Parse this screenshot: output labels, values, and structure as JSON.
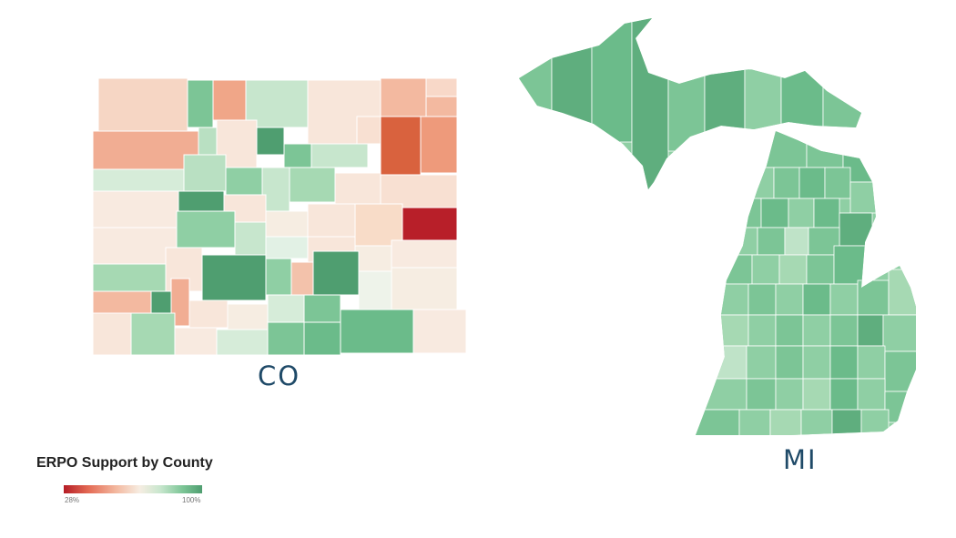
{
  "colorado": {
    "label": "CO",
    "scale_colors": [
      "#b51d26",
      "#e46b55",
      "#f3b9a0",
      "#f6ede2",
      "#c7e6cd",
      "#7cc596",
      "#4f9e70"
    ]
  },
  "michigan": {
    "label": "MI",
    "base_color": "#7cc596",
    "dark_color": "#5fae7e",
    "light_color": "#a9d9b5"
  },
  "legend": {
    "title": "ERPO Support by County",
    "min_label": "28%",
    "max_label": "100%",
    "min_color": "#b51d26",
    "max_color": "#4f9e70"
  }
}
